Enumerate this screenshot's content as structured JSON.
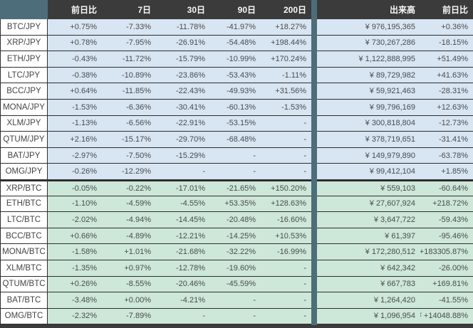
{
  "table": {
    "headers": [
      "前日比",
      "7日",
      "30日",
      "90日",
      "200日",
      "出来高",
      "前日比"
    ],
    "sections": [
      {
        "name": "jpy-pairs",
        "style": "jpy",
        "rows": [
          {
            "pair": "BTC/JPY",
            "values": [
              "+0.75%",
              "-7.33%",
              "-11.78%",
              "-41.97%",
              "+18.27%"
            ],
            "volume": "¥ 976,195,365",
            "volume_change": "+0.36%"
          },
          {
            "pair": "XRP/JPY",
            "values": [
              "+0.78%",
              "-7.95%",
              "-26.91%",
              "-54.48%",
              "+198.44%"
            ],
            "volume": "¥ 730,267,286",
            "volume_change": "-18.15%"
          },
          {
            "pair": "ETH/JPY",
            "values": [
              "-0.43%",
              "-11.72%",
              "-15.79%",
              "-10.99%",
              "+170.24%"
            ],
            "volume": "¥ 1,122,888,995",
            "volume_change": "+51.49%"
          },
          {
            "pair": "LTC/JPY",
            "values": [
              "-0.38%",
              "-10.89%",
              "-23.86%",
              "-53.43%",
              "-1.11%"
            ],
            "volume": "¥ 89,729,982",
            "volume_change": "+41.63%"
          },
          {
            "pair": "BCC/JPY",
            "values": [
              "+0.64%",
              "-11.85%",
              "-22.43%",
              "-49.93%",
              "+31.56%"
            ],
            "volume": "¥ 59,921,463",
            "volume_change": "-28.31%"
          },
          {
            "pair": "MONA/JPY",
            "values": [
              "-1.53%",
              "-6.36%",
              "-30.41%",
              "-60.13%",
              "-1.53%"
            ],
            "volume": "¥ 99,796,169",
            "volume_change": "+12.63%"
          },
          {
            "pair": "XLM/JPY",
            "values": [
              "-1.13%",
              "-6.56%",
              "-22.91%",
              "-53.15%",
              "-"
            ],
            "volume": "¥ 300,818,804",
            "volume_change": "-12.73%"
          },
          {
            "pair": "QTUM/JPY",
            "values": [
              "+2.16%",
              "-15.17%",
              "-29.70%",
              "-68.48%",
              "-"
            ],
            "volume": "¥ 378,719,651",
            "volume_change": "-31.41%"
          },
          {
            "pair": "BAT/JPY",
            "values": [
              "-2.97%",
              "-7.50%",
              "-15.29%",
              "-",
              "-"
            ],
            "volume": "¥ 149,979,890",
            "volume_change": "-63.78%"
          },
          {
            "pair": "OMG/JPY",
            "values": [
              "-0.26%",
              "-12.29%",
              "-",
              "-",
              "-"
            ],
            "volume": "¥ 99,412,104",
            "volume_change": "+1.85%"
          }
        ]
      },
      {
        "name": "btc-pairs",
        "style": "btc",
        "rows": [
          {
            "pair": "XRP/BTC",
            "values": [
              "-0.05%",
              "-0.22%",
              "-17.01%",
              "-21.65%",
              "+150.20%"
            ],
            "volume": "¥ 559,103",
            "volume_change": "-60.64%"
          },
          {
            "pair": "ETH/BTC",
            "values": [
              "-1.10%",
              "-4.59%",
              "-4.55%",
              "+53.35%",
              "+128.63%"
            ],
            "volume": "¥ 27,607,924",
            "volume_change": "+218.72%"
          },
          {
            "pair": "LTC/BTC",
            "values": [
              "-2.02%",
              "-4.94%",
              "-14.45%",
              "-20.48%",
              "-16.60%"
            ],
            "volume": "¥ 3,647,722",
            "volume_change": "-59.43%"
          },
          {
            "pair": "BCC/BTC",
            "values": [
              "+0.66%",
              "-4.89%",
              "-12.21%",
              "-14.25%",
              "+10.53%"
            ],
            "volume": "¥ 61,397",
            "volume_change": "-95.46%"
          },
          {
            "pair": "MONA/BTC",
            "values": [
              "-1.58%",
              "+1.01%",
              "-21.68%",
              "-32.22%",
              "-16.99%"
            ],
            "volume": "¥ 172,280,512",
            "volume_change": "+183305.87%"
          },
          {
            "pair": "XLM/BTC",
            "values": [
              "-1.35%",
              "+0.97%",
              "-12.78%",
              "-19.60%",
              "-"
            ],
            "volume": "¥ 642,342",
            "volume_change": "-26.00%"
          },
          {
            "pair": "QTUM/BTC",
            "values": [
              "+0.26%",
              "-8.55%",
              "-20.46%",
              "-45.59%",
              "-"
            ],
            "volume": "¥ 667,783",
            "volume_change": "+169.81%"
          },
          {
            "pair": "BAT/BTC",
            "values": [
              "-3.48%",
              "+0.00%",
              "-4.21%",
              "-",
              "-"
            ],
            "volume": "¥ 1,264,420",
            "volume_change": "-41.55%"
          },
          {
            "pair": "OMG/BTC",
            "values": [
              "-2.32%",
              "-7.89%",
              "-",
              "-",
              "-"
            ],
            "volume": "¥ 1,096,954",
            "volume_change": "¥ +14048.88%"
          }
        ]
      }
    ]
  },
  "colors": {
    "header_bg": "#3b3b3b",
    "corner_bg": "#4e6d7a",
    "jpy_row_bg": "#d8e5f2",
    "btc_row_bg": "#cde7d9",
    "band": "#4e6d7a",
    "border": "#2e2e2e",
    "header_text": "#f7f7f7",
    "value_text": "#4c4c4c"
  }
}
